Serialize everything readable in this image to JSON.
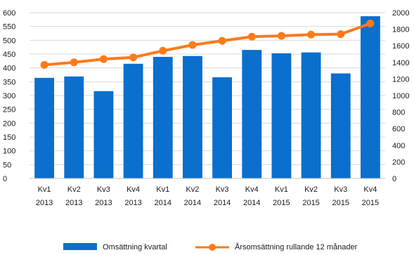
{
  "chart_data": {
    "type": "bar",
    "categories": [
      [
        "Kv1",
        "2013"
      ],
      [
        "Kv2",
        "2013"
      ],
      [
        "Kv3",
        "2013"
      ],
      [
        "Kv4",
        "2013"
      ],
      [
        "Kv1",
        "2014"
      ],
      [
        "Kv2",
        "2014"
      ],
      [
        "Kv3",
        "2014"
      ],
      [
        "Kv4",
        "2014"
      ],
      [
        "Kv1",
        "2015"
      ],
      [
        "Kv2",
        "2015"
      ],
      [
        "Kv3",
        "2015"
      ],
      [
        "Kv4",
        "2015"
      ]
    ],
    "series": [
      {
        "name": "Omsättning kvartal",
        "type": "bar",
        "axis": "left",
        "color": "#0a6fcd",
        "values": [
          364,
          369,
          316,
          415,
          440,
          443,
          366,
          465,
          453,
          456,
          380,
          587
        ]
      },
      {
        "name": "Årsomsättning rullande 12 månader",
        "type": "line",
        "axis": "right",
        "color": "#ff7a1a",
        "values": [
          1370,
          1400,
          1440,
          1460,
          1540,
          1610,
          1660,
          1710,
          1720,
          1735,
          1740,
          1870
        ]
      }
    ],
    "y_left": {
      "min": 0,
      "max": 600,
      "ticks": [
        0,
        50,
        100,
        150,
        200,
        250,
        300,
        350,
        400,
        450,
        500,
        550,
        600
      ]
    },
    "y_right": {
      "min": 0,
      "max": 2000,
      "ticks": [
        0,
        200,
        400,
        600,
        800,
        1000,
        1200,
        1400,
        1600,
        1800,
        2000
      ]
    },
    "grid": true,
    "legend_position": "bottom"
  },
  "legend": {
    "bar_label": "Omsättning kvartal",
    "line_label": "Årsomsättning rullande 12 månader"
  }
}
